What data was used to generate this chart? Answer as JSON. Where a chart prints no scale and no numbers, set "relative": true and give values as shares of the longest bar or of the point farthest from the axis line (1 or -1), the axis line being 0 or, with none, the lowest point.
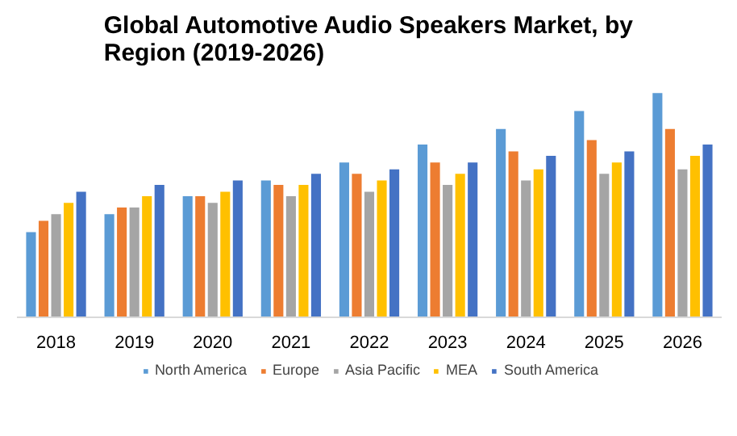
{
  "chart_data": {
    "type": "bar",
    "title": "Global Automotive Audio Speakers Market, by Region (2019-2026)",
    "relative": true,
    "legend": "bottom",
    "categories": [
      "2018",
      "2019",
      "2020",
      "2021",
      "2022",
      "2023",
      "2024",
      "2025",
      "2026"
    ],
    "series": [
      {
        "name": "North America",
        "color": "#5b9bd5",
        "values": [
          0.38,
          0.46,
          0.54,
          0.61,
          0.69,
          0.77,
          0.84,
          0.92,
          1
        ]
      },
      {
        "name": "Europe",
        "color": "#ed7d31",
        "values": [
          0.43,
          0.49,
          0.54,
          0.59,
          0.64,
          0.69,
          0.74,
          0.79,
          0.84
        ]
      },
      {
        "name": "Asia Pacific",
        "color": "#a5a5a5",
        "values": [
          0.46,
          0.49,
          0.51,
          0.54,
          0.56,
          0.59,
          0.61,
          0.64,
          0.66
        ]
      },
      {
        "name": "MEA",
        "color": "#ffc000",
        "values": [
          0.51,
          0.54,
          0.56,
          0.59,
          0.61,
          0.64,
          0.66,
          0.69,
          0.72
        ]
      },
      {
        "name": "South America",
        "color": "#4472c4",
        "values": [
          0.56,
          0.59,
          0.61,
          0.64,
          0.66,
          0.69,
          0.72,
          0.74,
          0.77
        ]
      }
    ]
  }
}
